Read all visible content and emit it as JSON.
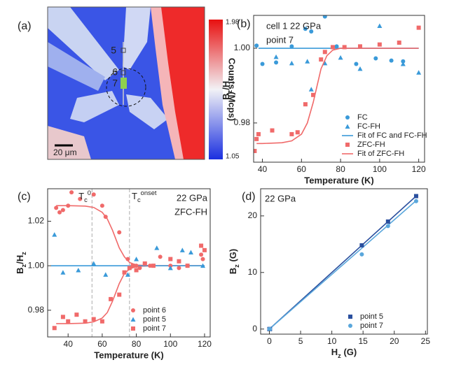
{
  "chart_data": [
    {
      "type": "image",
      "panel_label": "(a)",
      "colorbar_label": "Counts (Mcps)",
      "clim": [
        1.05,
        1.98
      ],
      "colorbar_ticks": [
        1.98,
        1.05
      ],
      "scale_bar": "20 μm",
      "point_labels": [
        "5",
        "6",
        "7"
      ]
    },
    {
      "type": "scatter",
      "panel_label": "(b)",
      "annotations": [
        "cell 1 22 GPa",
        "point 7"
      ],
      "x_label": "Temperature (K)",
      "y_label": "B_z/H_z",
      "xlim": [
        35.5,
        123
      ],
      "xticks": [
        40,
        60,
        80,
        100,
        120
      ],
      "ylim": [
        0.9695,
        1.0088
      ],
      "yticks": [
        0.98,
        {
          "value": 1,
          "label": "1.00"
        }
      ],
      "legend": "lower right",
      "series": [
        {
          "name": "FC",
          "color": "#3a9ad9",
          "marker": "circle",
          "x": [
            37,
            40,
            47,
            55,
            62,
            65,
            72,
            78,
            88,
            98,
            106,
            112
          ],
          "values": [
            1.0007,
            0.9958,
            0.9962,
            1.0005,
            1.0052,
            1.0045,
            1.0085,
            1.0005,
            0.9958,
            0.9973,
            0.9967,
            0.9965
          ]
        },
        {
          "name": "FC-FH",
          "color": "#3a9ad9",
          "marker": "triangle",
          "x": [
            47,
            55,
            63,
            65,
            72,
            80,
            90,
            100,
            112,
            120
          ],
          "values": [
            0.9977,
            0.996,
            0.9965,
            0.989,
            0.996,
            0.9975,
            0.9945,
            1.006,
            0.9958,
            0.9935
          ]
        },
        {
          "name": "Fit of FC and FC-FH",
          "color": "#3a9ad9",
          "marker": "line",
          "x": [
            38,
            120
          ],
          "values": [
            1,
            1
          ]
        },
        {
          "name": "ZFC-FH",
          "color": "#f06a6a",
          "marker": "square",
          "x": [
            36,
            37,
            38,
            45,
            55,
            58,
            62,
            66,
            70,
            72,
            76,
            82,
            90,
            100,
            110,
            120
          ],
          "values": [
            0.9725,
            0.9757,
            0.977,
            0.978,
            0.977,
            0.9775,
            0.985,
            0.9875,
            0.997,
            0.999,
            1.0003,
            1.0003,
            1.0005,
            1.001,
            1.0015,
            1.0055
          ]
        },
        {
          "name": "Fit of ZFC-FH",
          "color": "#f06a6a",
          "marker": "line",
          "x": [
            37,
            40,
            50,
            55,
            60,
            63,
            66,
            68,
            70,
            73,
            76,
            80,
            90,
            100,
            120
          ],
          "values": [
            0.9745,
            0.9745,
            0.9747,
            0.9752,
            0.977,
            0.98,
            0.9855,
            0.99,
            0.9945,
            0.998,
            0.9995,
            1,
            1,
            1,
            1
          ]
        }
      ]
    },
    {
      "type": "scatter",
      "panel_label": "(c)",
      "annotations": [
        "T_c^0",
        "T_c^onset",
        "22 GPa",
        "ZFC-FH"
      ],
      "x_label": "Temperature (K)",
      "y_label": "B_z/H_z",
      "xlim": [
        28,
        123.3
      ],
      "xticks": [
        40,
        60,
        80,
        100,
        120
      ],
      "ylim": [
        0.968,
        1.0346
      ],
      "yticks": [
        0.98,
        {
          "value": 1,
          "label": "1.00"
        },
        1.02
      ],
      "vlines": [
        54,
        76
      ],
      "legend": "lower right",
      "fits": [
        {
          "color": "#f06a6a",
          "x": [
            33,
            40,
            50,
            55,
            60,
            63,
            66,
            68,
            70,
            73,
            76,
            80,
            90,
            100,
            120
          ],
          "values": [
            1.027,
            1.027,
            1.0268,
            1.0262,
            1.024,
            1.021,
            1.016,
            1.012,
            1.008,
            1.004,
            1.0015,
            1.0003,
            1,
            1,
            1
          ]
        },
        {
          "color": "#f06a6a",
          "x": [
            33,
            40,
            50,
            55,
            60,
            63,
            66,
            68,
            70,
            73,
            76,
            80,
            90,
            100,
            120
          ],
          "values": [
            0.974,
            0.974,
            0.9742,
            0.9748,
            0.9765,
            0.979,
            0.984,
            0.988,
            0.992,
            0.9965,
            0.9985,
            0.9997,
            1,
            1,
            1
          ]
        },
        {
          "color": "#3a9ad9",
          "x": [
            30,
            120
          ],
          "values": [
            1,
            1
          ]
        }
      ],
      "series": [
        {
          "name": "point 6",
          "color": "#f06a6a",
          "marker": "circle",
          "x": [
            33,
            35,
            37,
            40,
            42,
            47,
            55,
            60,
            62,
            70,
            75,
            80,
            82,
            85,
            88,
            94,
            100,
            105,
            110,
            118,
            119
          ],
          "values": [
            1.026,
            1.024,
            1.025,
            1.027,
            1.033,
            1.03,
            1.032,
            1.027,
            1.022,
            1.015,
            1.003,
            1,
            0.999,
            1.001,
            1,
            1.004,
            1,
            0.999,
            1,
            1.005,
            1.003
          ]
        },
        {
          "name": "point 5",
          "color": "#3a9ad9",
          "marker": "triangle",
          "x": [
            32,
            37,
            46,
            55,
            62,
            75,
            80,
            92,
            100,
            107,
            112,
            119
          ],
          "values": [
            1.014,
            0.997,
            0.998,
            1.001,
            0.996,
            0.996,
            1.003,
            1.008,
            0.999,
            1.007,
            1.006,
            1
          ]
        },
        {
          "name": "point 7",
          "color": "#f06a6a",
          "marker": "square",
          "x": [
            32,
            37,
            40,
            45,
            50,
            55,
            60,
            65,
            70,
            73,
            76,
            78,
            80,
            85,
            90,
            100,
            105,
            110,
            118,
            120
          ],
          "values": [
            0.972,
            0.977,
            0.975,
            0.978,
            0.975,
            0.976,
            0.975,
            0.985,
            0.987,
            0.997,
            0.999,
            1,
            0.998,
            1.001,
            1,
            1.003,
            1.002,
            1,
            1.009,
            1.007
          ]
        }
      ]
    },
    {
      "type": "scatter",
      "panel_label": "(d)",
      "annotations": [
        "22 GPa"
      ],
      "x_label": "H_z (G)",
      "y_label": "B_z (G)",
      "xlim": [
        -1.4,
        25.3
      ],
      "xticks": [
        0,
        5,
        10,
        15,
        20,
        25
      ],
      "ylim": [
        -0.9,
        24.8
      ],
      "yticks": [
        0,
        10,
        20
      ],
      "legend": "lower right",
      "fits": [
        {
          "color": "#2a4f9e",
          "x": [
            0,
            23.5
          ],
          "values": [
            0,
            23.5
          ]
        },
        {
          "color": "#5aa7dc",
          "x": [
            0,
            23.5
          ],
          "values": [
            0,
            22.7
          ]
        }
      ],
      "series": [
        {
          "name": "point 5",
          "color": "#2a4f9e",
          "marker": "square",
          "x": [
            0,
            0.1,
            14.8,
            19,
            23.5
          ],
          "values": [
            0,
            0,
            14.8,
            19,
            23.5
          ]
        },
        {
          "name": "point 7",
          "color": "#5aa7dc",
          "marker": "circle",
          "x": [
            0,
            0.1,
            14.8,
            19,
            23.5
          ],
          "values": [
            0,
            0,
            13.2,
            18.2,
            22.6
          ]
        }
      ]
    }
  ]
}
